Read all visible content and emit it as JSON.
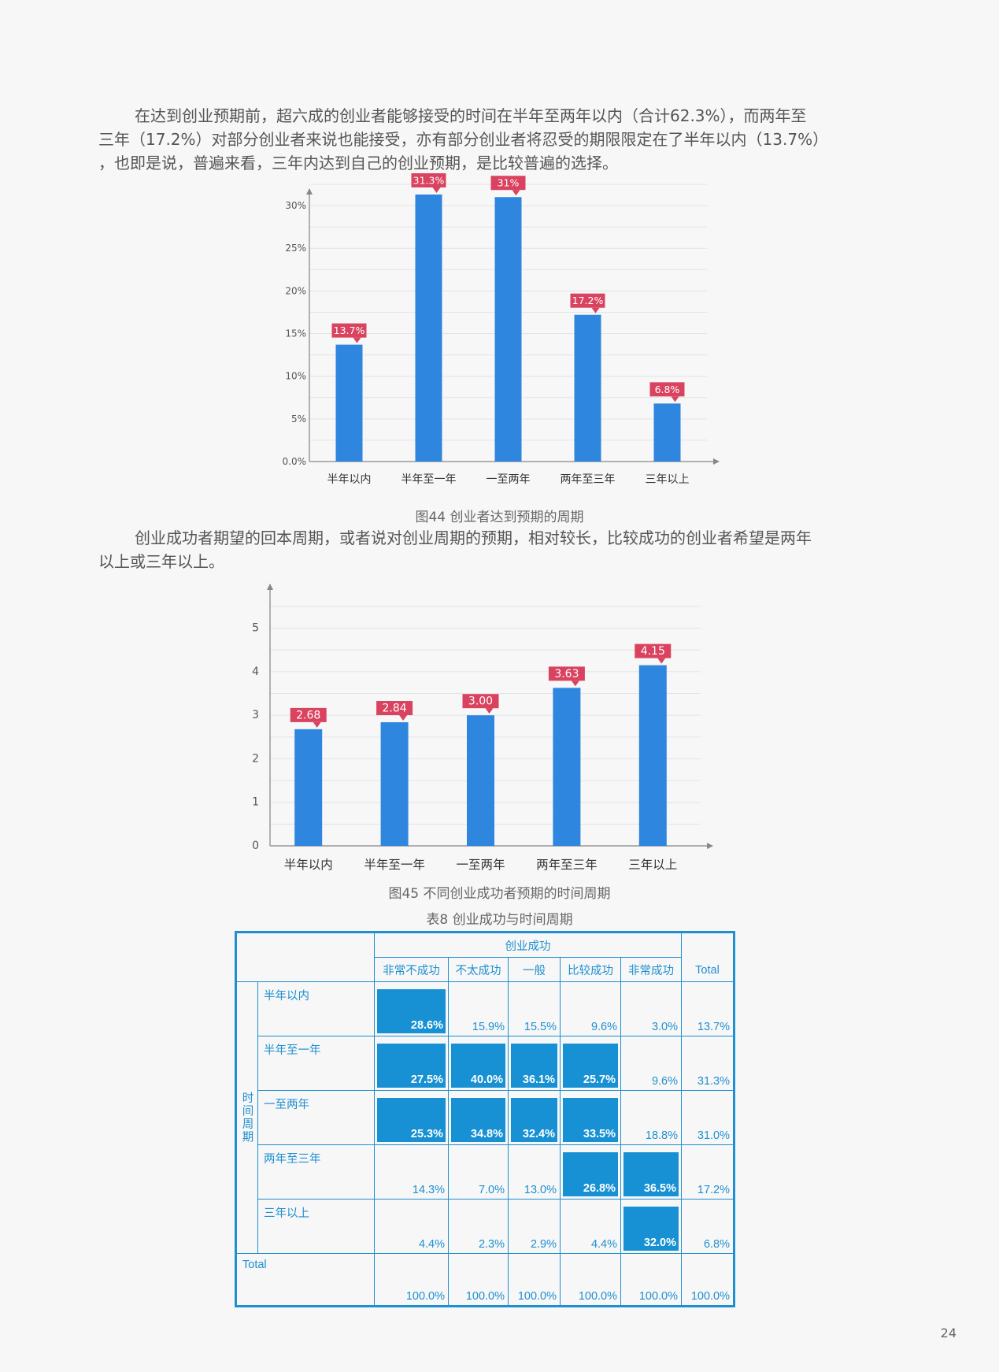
{
  "intro": {
    "para1_line1": "在达到创业预期前，超六成的创业者能够接受的时间在半年至两年以内（合计62.3%），而两年至",
    "para1_line2": "三年（17.2%）对部分创业者来说也能接受，亦有部分创业者将忍受的期限限定在了半年以内（13.7%）",
    "para1_line3": "，也即是说，普遍来看，三年内达到自己的创业预期，是比较普遍的选择。"
  },
  "chart_data": [
    {
      "type": "bar",
      "title": "图44  创业者达到预期的周期",
      "categories": [
        "半年以内",
        "半年至一年",
        "一至两年",
        "两年至三年",
        "三年以上"
      ],
      "values": [
        13.7,
        31.3,
        31,
        17.2,
        6.8
      ],
      "data_labels": [
        "13.7%",
        "31.3%",
        "31%",
        "17.2%",
        "6.8%"
      ],
      "yticks": [
        "0.0%",
        "5%",
        "10%",
        "15%",
        "20%",
        "25%",
        "30%"
      ],
      "ytick_values": [
        0,
        5,
        10,
        15,
        20,
        25,
        30
      ],
      "ylim": [
        0,
        32.5
      ],
      "xlabel": "",
      "ylabel": "",
      "grid": true,
      "bar_color": "#2e86de",
      "label_color": "#d9435f"
    },
    {
      "type": "bar",
      "title": "图45 不同创业成功者预期的时间周期",
      "categories": [
        "半年以内",
        "半年至一年",
        "一至两年",
        "两年至三年",
        "三年以上"
      ],
      "values": [
        2.68,
        2.84,
        3.0,
        3.63,
        4.15
      ],
      "data_labels": [
        "2.68",
        "2.84",
        "3.00",
        "3.63",
        "4.15"
      ],
      "yticks": [
        "0",
        "1",
        "2",
        "3",
        "4",
        "5"
      ],
      "ytick_values": [
        0,
        1,
        2,
        3,
        4,
        5
      ],
      "ylim": [
        0,
        5.5
      ],
      "xlabel": "",
      "ylabel": "",
      "grid": true,
      "bar_color": "#2e86de",
      "label_color": "#d9435f"
    }
  ],
  "middle": {
    "para2_line1": "创业成功者期望的回本周期，或者说对创业周期的预期，相对较长，比较成功的创业者希望是两年",
    "para2_line2": "以上或三年以上。"
  },
  "table": {
    "caption": "表8 创业成功与时间周期",
    "group_header": "创业成功",
    "columns": [
      "非常不成功",
      "不太成功",
      "一般",
      "比较成功",
      "非常成功",
      "Total"
    ],
    "row_group_label": "时间周期",
    "rows": [
      {
        "label": "半年以内",
        "cells": [
          "28.6%",
          "15.9%",
          "15.5%",
          "9.6%",
          "3.0%",
          "13.7%"
        ],
        "highlight": [
          true,
          false,
          false,
          false,
          false,
          false
        ]
      },
      {
        "label": "半年至一年",
        "cells": [
          "27.5%",
          "40.0%",
          "36.1%",
          "25.7%",
          "9.6%",
          "31.3%"
        ],
        "highlight": [
          true,
          true,
          true,
          true,
          false,
          false
        ]
      },
      {
        "label": "一至两年",
        "cells": [
          "25.3%",
          "34.8%",
          "32.4%",
          "33.5%",
          "18.8%",
          "31.0%"
        ],
        "highlight": [
          true,
          true,
          true,
          true,
          false,
          false
        ]
      },
      {
        "label": "两年至三年",
        "cells": [
          "14.3%",
          "7.0%",
          "13.0%",
          "26.8%",
          "36.5%",
          "17.2%"
        ],
        "highlight": [
          false,
          false,
          false,
          true,
          true,
          false
        ]
      },
      {
        "label": "三年以上",
        "cells": [
          "4.4%",
          "2.3%",
          "2.9%",
          "4.4%",
          "32.0%",
          "6.8%"
        ],
        "highlight": [
          false,
          false,
          false,
          false,
          true,
          false
        ]
      }
    ],
    "total_row": {
      "label": "Total",
      "cells": [
        "100.0%",
        "100.0%",
        "100.0%",
        "100.0%",
        "100.0%",
        "100.0%"
      ]
    },
    "accent_color": "#1e8fd0",
    "highlight_color": "#1791d3"
  },
  "page_number": "24"
}
